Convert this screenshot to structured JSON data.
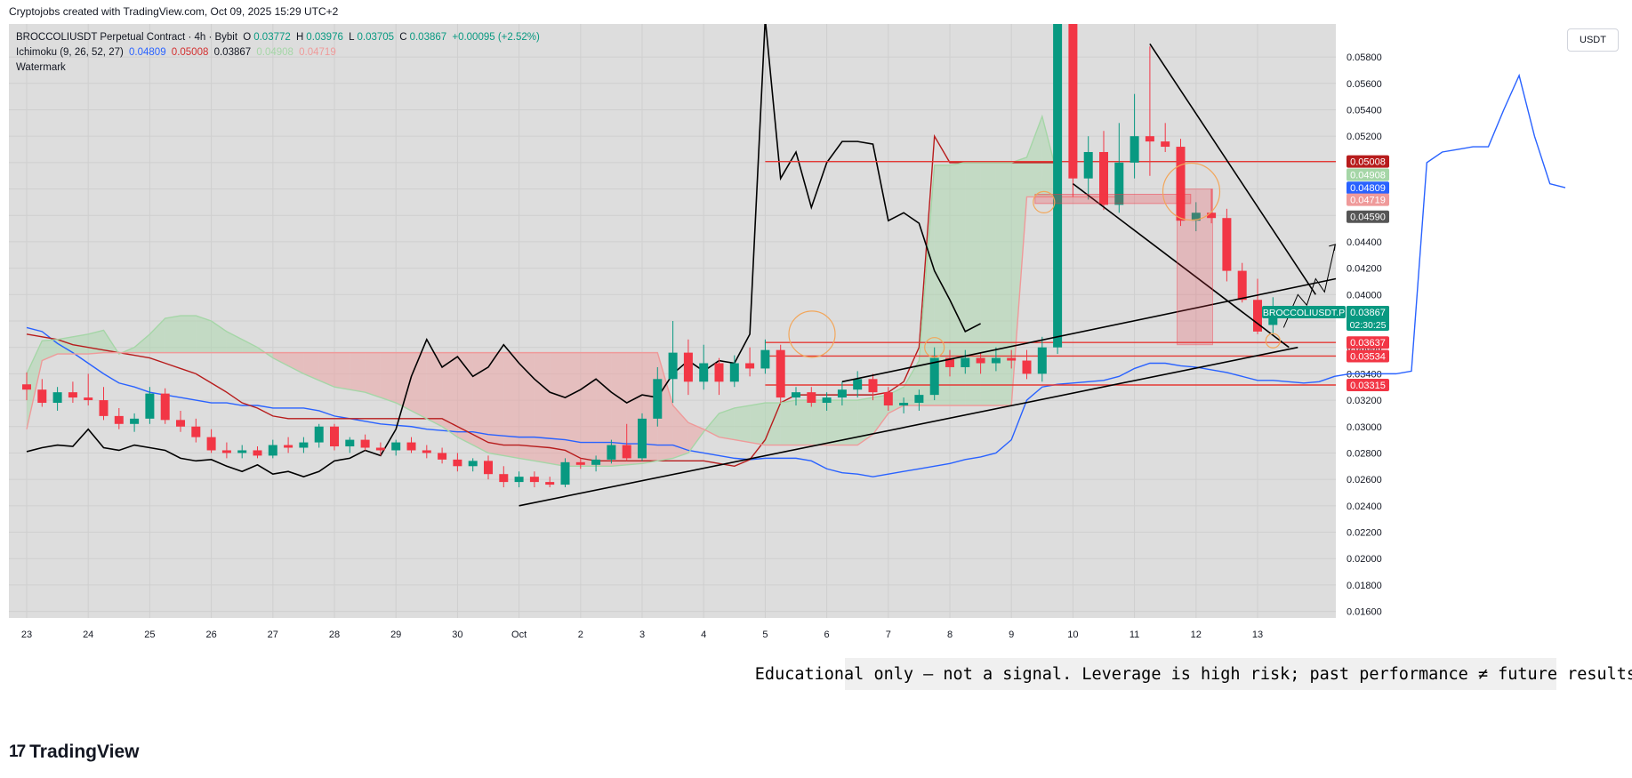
{
  "header": {
    "attribution": "Cryptojobs created with TradingView.com, Oct 09, 2025 15:29 UTC+2"
  },
  "legend": {
    "symbol": "BROCCOLIUSDT Perpetual Contract · 4h · Bybit",
    "ohlc": {
      "o_label": "O",
      "o": "0.03772",
      "h_label": "H",
      "h": "0.03976",
      "l_label": "L",
      "l": "0.03705",
      "c_label": "C",
      "c": "0.03867",
      "change": "+0.00095 (+2.52%)"
    },
    "ichimoku": {
      "label": "Ichimoku (9, 26, 52, 27)",
      "values": [
        "0.04809",
        "0.05008",
        "0.03867",
        "0.04908",
        "0.04719"
      ]
    },
    "watermark": "Watermark"
  },
  "currency_button": "USDT",
  "disclaimer": "Educational only — not a signal. Leverage is high risk; past performance ≠ future results.",
  "footer": {
    "brand": "TradingView"
  },
  "colors": {
    "up": "#089981",
    "down": "#f23645",
    "tenkan": "#2962ff",
    "kijun": "#b71c1c",
    "chikou": "#000000",
    "span_a": "#a5d6a7",
    "span_b": "#ef9a9a",
    "background": "#dddddd"
  },
  "chart_data": {
    "type": "candlestick",
    "title": "BROCCOLIUSDT Perpetual Contract · 4h · Bybit",
    "ylim": [
      0.0155,
      0.0605
    ],
    "y_ticks": [
      "0.05800",
      "0.05600",
      "0.05400",
      "0.05200",
      "0.05000",
      "0.04800",
      "0.04600",
      "0.04400",
      "0.04200",
      "0.04000",
      "0.03800",
      "0.03600",
      "0.03400",
      "0.03200",
      "0.03000",
      "0.02800",
      "0.02600",
      "0.02400",
      "0.02200",
      "0.02000",
      "0.01800",
      "0.01600"
    ],
    "x_ticks": [
      "23",
      "24",
      "25",
      "26",
      "27",
      "28",
      "29",
      "30",
      "Oct",
      "2",
      "3",
      "4",
      "5",
      "6",
      "7",
      "8",
      "9",
      "10",
      "11",
      "12",
      "13"
    ],
    "grid": true,
    "candles": [
      {
        "t": "23",
        "o": 0.0332,
        "h": 0.0341,
        "l": 0.032,
        "c": 0.0328
      },
      {
        "t": "23",
        "o": 0.0328,
        "h": 0.0336,
        "l": 0.0315,
        "c": 0.0318
      },
      {
        "t": "23",
        "o": 0.0318,
        "h": 0.033,
        "l": 0.0312,
        "c": 0.0326
      },
      {
        "t": "23",
        "o": 0.0326,
        "h": 0.0334,
        "l": 0.0318,
        "c": 0.0322
      },
      {
        "t": "24",
        "o": 0.0322,
        "h": 0.034,
        "l": 0.0316,
        "c": 0.032
      },
      {
        "t": "24",
        "o": 0.032,
        "h": 0.033,
        "l": 0.0305,
        "c": 0.0308
      },
      {
        "t": "24",
        "o": 0.0308,
        "h": 0.0314,
        "l": 0.0298,
        "c": 0.0302
      },
      {
        "t": "24",
        "o": 0.0302,
        "h": 0.031,
        "l": 0.0296,
        "c": 0.0306
      },
      {
        "t": "25",
        "o": 0.0306,
        "h": 0.033,
        "l": 0.0302,
        "c": 0.0325
      },
      {
        "t": "25",
        "o": 0.0325,
        "h": 0.0329,
        "l": 0.0302,
        "c": 0.0305
      },
      {
        "t": "25",
        "o": 0.0305,
        "h": 0.0312,
        "l": 0.0296,
        "c": 0.03
      },
      {
        "t": "25",
        "o": 0.03,
        "h": 0.0306,
        "l": 0.0288,
        "c": 0.0292
      },
      {
        "t": "26",
        "o": 0.0292,
        "h": 0.0298,
        "l": 0.028,
        "c": 0.0282
      },
      {
        "t": "26",
        "o": 0.0282,
        "h": 0.0288,
        "l": 0.0276,
        "c": 0.028
      },
      {
        "t": "26",
        "o": 0.028,
        "h": 0.0286,
        "l": 0.0276,
        "c": 0.0282
      },
      {
        "t": "26",
        "o": 0.0282,
        "h": 0.0285,
        "l": 0.0276,
        "c": 0.0278
      },
      {
        "t": "27",
        "o": 0.0278,
        "h": 0.029,
        "l": 0.0276,
        "c": 0.0286
      },
      {
        "t": "27",
        "o": 0.0286,
        "h": 0.0292,
        "l": 0.028,
        "c": 0.0284
      },
      {
        "t": "27",
        "o": 0.0284,
        "h": 0.0292,
        "l": 0.028,
        "c": 0.0288
      },
      {
        "t": "27",
        "o": 0.0288,
        "h": 0.0302,
        "l": 0.0284,
        "c": 0.03
      },
      {
        "t": "28",
        "o": 0.03,
        "h": 0.0302,
        "l": 0.0282,
        "c": 0.0285
      },
      {
        "t": "28",
        "o": 0.0285,
        "h": 0.0292,
        "l": 0.028,
        "c": 0.029
      },
      {
        "t": "28",
        "o": 0.029,
        "h": 0.0294,
        "l": 0.0282,
        "c": 0.0284
      },
      {
        "t": "28",
        "o": 0.0284,
        "h": 0.0288,
        "l": 0.0278,
        "c": 0.0282
      },
      {
        "t": "29",
        "o": 0.0282,
        "h": 0.029,
        "l": 0.0278,
        "c": 0.0288
      },
      {
        "t": "29",
        "o": 0.0288,
        "h": 0.0292,
        "l": 0.028,
        "c": 0.0282
      },
      {
        "t": "29",
        "o": 0.0282,
        "h": 0.0286,
        "l": 0.0276,
        "c": 0.028
      },
      {
        "t": "29",
        "o": 0.028,
        "h": 0.0284,
        "l": 0.0272,
        "c": 0.0275
      },
      {
        "t": "30",
        "o": 0.0275,
        "h": 0.028,
        "l": 0.0266,
        "c": 0.027
      },
      {
        "t": "30",
        "o": 0.027,
        "h": 0.0276,
        "l": 0.0266,
        "c": 0.0274
      },
      {
        "t": "30",
        "o": 0.0274,
        "h": 0.0278,
        "l": 0.026,
        "c": 0.0264
      },
      {
        "t": "30",
        "o": 0.0264,
        "h": 0.027,
        "l": 0.0254,
        "c": 0.0258
      },
      {
        "t": "Oct",
        "o": 0.0258,
        "h": 0.0266,
        "l": 0.0254,
        "c": 0.0262
      },
      {
        "t": "Oct",
        "o": 0.0262,
        "h": 0.0266,
        "l": 0.0254,
        "c": 0.0258
      },
      {
        "t": "Oct",
        "o": 0.0258,
        "h": 0.0262,
        "l": 0.0254,
        "c": 0.0256
      },
      {
        "t": "Oct",
        "o": 0.0256,
        "h": 0.0276,
        "l": 0.0254,
        "c": 0.0273
      },
      {
        "t": "2",
        "o": 0.0273,
        "h": 0.0276,
        "l": 0.0268,
        "c": 0.0271
      },
      {
        "t": "2",
        "o": 0.0271,
        "h": 0.0278,
        "l": 0.0266,
        "c": 0.0275
      },
      {
        "t": "2",
        "o": 0.0275,
        "h": 0.029,
        "l": 0.0272,
        "c": 0.0286
      },
      {
        "t": "2",
        "o": 0.0286,
        "h": 0.0302,
        "l": 0.0274,
        "c": 0.0276
      },
      {
        "t": "3",
        "o": 0.0276,
        "h": 0.031,
        "l": 0.0274,
        "c": 0.0306
      },
      {
        "t": "3",
        "o": 0.0306,
        "h": 0.0345,
        "l": 0.03,
        "c": 0.0336
      },
      {
        "t": "3",
        "o": 0.0336,
        "h": 0.038,
        "l": 0.0318,
        "c": 0.0356
      },
      {
        "t": "3",
        "o": 0.0356,
        "h": 0.0366,
        "l": 0.0324,
        "c": 0.0334
      },
      {
        "t": "4",
        "o": 0.0334,
        "h": 0.0362,
        "l": 0.0328,
        "c": 0.0348
      },
      {
        "t": "4",
        "o": 0.0348,
        "h": 0.0352,
        "l": 0.0324,
        "c": 0.0334
      },
      {
        "t": "4",
        "o": 0.0334,
        "h": 0.0354,
        "l": 0.033,
        "c": 0.0348
      },
      {
        "t": "4",
        "o": 0.0348,
        "h": 0.036,
        "l": 0.0338,
        "c": 0.0344
      },
      {
        "t": "5",
        "o": 0.0344,
        "h": 0.0366,
        "l": 0.034,
        "c": 0.0358
      },
      {
        "t": "5",
        "o": 0.0358,
        "h": 0.0362,
        "l": 0.0318,
        "c": 0.0322
      },
      {
        "t": "5",
        "o": 0.0322,
        "h": 0.033,
        "l": 0.0316,
        "c": 0.0326
      },
      {
        "t": "5",
        "o": 0.0326,
        "h": 0.033,
        "l": 0.0315,
        "c": 0.0318
      },
      {
        "t": "6",
        "o": 0.0318,
        "h": 0.0326,
        "l": 0.0312,
        "c": 0.0322
      },
      {
        "t": "6",
        "o": 0.0322,
        "h": 0.0334,
        "l": 0.0316,
        "c": 0.0328
      },
      {
        "t": "6",
        "o": 0.0328,
        "h": 0.0342,
        "l": 0.0322,
        "c": 0.0336
      },
      {
        "t": "6",
        "o": 0.0336,
        "h": 0.034,
        "l": 0.032,
        "c": 0.0326
      },
      {
        "t": "7",
        "o": 0.0326,
        "h": 0.033,
        "l": 0.0312,
        "c": 0.0316
      },
      {
        "t": "7",
        "o": 0.0316,
        "h": 0.0322,
        "l": 0.031,
        "c": 0.0318
      },
      {
        "t": "7",
        "o": 0.0318,
        "h": 0.0328,
        "l": 0.0312,
        "c": 0.0324
      },
      {
        "t": "7",
        "o": 0.0324,
        "h": 0.036,
        "l": 0.032,
        "c": 0.0352
      },
      {
        "t": "8",
        "o": 0.0352,
        "h": 0.0358,
        "l": 0.0338,
        "c": 0.0345
      },
      {
        "t": "8",
        "o": 0.0345,
        "h": 0.0358,
        "l": 0.034,
        "c": 0.0352
      },
      {
        "t": "8",
        "o": 0.0352,
        "h": 0.0356,
        "l": 0.034,
        "c": 0.0348
      },
      {
        "t": "8",
        "o": 0.0348,
        "h": 0.036,
        "l": 0.0342,
        "c": 0.0352
      },
      {
        "t": "9",
        "o": 0.0352,
        "h": 0.0358,
        "l": 0.0344,
        "c": 0.035
      },
      {
        "t": "9",
        "o": 0.035,
        "h": 0.0358,
        "l": 0.0336,
        "c": 0.034
      },
      {
        "t": "9",
        "o": 0.034,
        "h": 0.0368,
        "l": 0.0334,
        "c": 0.036
      },
      {
        "t": "9",
        "o": 0.036,
        "h": 0.0606,
        "l": 0.0355,
        "c": 0.0605
      },
      {
        "t": "10",
        "o": 0.0605,
        "h": 0.0606,
        "l": 0.0474,
        "c": 0.0488
      },
      {
        "t": "10",
        "o": 0.0488,
        "h": 0.052,
        "l": 0.0472,
        "c": 0.0508
      },
      {
        "t": "10",
        "o": 0.0508,
        "h": 0.0524,
        "l": 0.0464,
        "c": 0.0468
      },
      {
        "t": "10",
        "o": 0.0468,
        "h": 0.053,
        "l": 0.0462,
        "c": 0.05
      },
      {
        "t": "11",
        "o": 0.05,
        "h": 0.0552,
        "l": 0.0488,
        "c": 0.052
      },
      {
        "t": "11",
        "o": 0.052,
        "h": 0.0588,
        "l": 0.049,
        "c": 0.0516
      },
      {
        "t": "11",
        "o": 0.0516,
        "h": 0.053,
        "l": 0.0508,
        "c": 0.0512
      },
      {
        "t": "11",
        "o": 0.0512,
        "h": 0.0518,
        "l": 0.0452,
        "c": 0.0456
      },
      {
        "t": "12",
        "o": 0.0456,
        "h": 0.047,
        "l": 0.0448,
        "c": 0.0462
      },
      {
        "t": "12",
        "o": 0.0462,
        "h": 0.048,
        "l": 0.0454,
        "c": 0.0458
      },
      {
        "t": "12",
        "o": 0.0458,
        "h": 0.0465,
        "l": 0.041,
        "c": 0.0418
      },
      {
        "t": "12",
        "o": 0.0418,
        "h": 0.0424,
        "l": 0.0394,
        "c": 0.0396
      },
      {
        "t": "13",
        "o": 0.0396,
        "h": 0.0412,
        "l": 0.037,
        "c": 0.0372
      },
      {
        "t": "13",
        "o": 0.0377,
        "h": 0.0398,
        "l": 0.037,
        "c": 0.0387
      }
    ],
    "series": [
      {
        "key": "tenkan",
        "values": [
          0.0375,
          0.0372,
          0.0363,
          0.0356,
          0.0348,
          0.034,
          0.0333,
          0.033,
          0.0326,
          0.0324,
          0.0322,
          0.032,
          0.0318,
          0.0318,
          0.0316,
          0.0316,
          0.0314,
          0.0314,
          0.0314,
          0.0312,
          0.0308,
          0.0306,
          0.0304,
          0.0302,
          0.0301,
          0.03,
          0.0298,
          0.0297,
          0.0296,
          0.0296,
          0.0294,
          0.0293,
          0.0292,
          0.0292,
          0.0291,
          0.029,
          0.0288,
          0.0288,
          0.0288,
          0.0287,
          0.0287,
          0.0286,
          0.0286,
          0.0282,
          0.028,
          0.0278,
          0.0276,
          0.0275,
          0.0276,
          0.0276,
          0.0276,
          0.0274,
          0.0268,
          0.0265,
          0.0264,
          0.0262,
          0.0264,
          0.0266,
          0.0268,
          0.027,
          0.0272,
          0.0275,
          0.0277,
          0.028,
          0.029,
          0.032,
          0.033,
          0.0332,
          0.0333,
          0.0334,
          0.0335,
          0.0338,
          0.0344,
          0.0348,
          0.0348,
          0.0346,
          0.0345,
          0.0343,
          0.0341,
          0.0338,
          0.0335,
          0.0335,
          0.0334,
          0.0333,
          0.0334,
          0.0338,
          0.034,
          0.034,
          0.034,
          0.034,
          0.0342,
          0.05,
          0.0508,
          0.051,
          0.0512,
          0.0512,
          0.054,
          0.0566,
          0.052,
          0.0484,
          0.0481
        ]
      },
      {
        "key": "kijun",
        "values": [
          0.037,
          0.0368,
          0.0366,
          0.0362,
          0.036,
          0.0358,
          0.0356,
          0.0354,
          0.0352,
          0.0348,
          0.0344,
          0.034,
          0.0333,
          0.0326,
          0.0318,
          0.0314,
          0.0308,
          0.0306,
          0.0306,
          0.0306,
          0.0306,
          0.0306,
          0.0306,
          0.0306,
          0.0306,
          0.0306,
          0.0306,
          0.0306,
          0.03,
          0.0294,
          0.0288,
          0.0286,
          0.0286,
          0.0285,
          0.0284,
          0.0282,
          0.0276,
          0.0274,
          0.0274,
          0.0274,
          0.0274,
          0.0274,
          0.0274,
          0.0274,
          0.0274,
          0.0272,
          0.027,
          0.0275,
          0.029,
          0.0318,
          0.0324,
          0.0324,
          0.0324,
          0.0324,
          0.0324,
          0.0324,
          0.0326,
          0.0334,
          0.036,
          0.052,
          0.05,
          0.05,
          0.05,
          0.05,
          0.05,
          0.05,
          0.05,
          0.05
        ]
      },
      {
        "key": "span_a",
        "values": [
          0.034,
          0.0365,
          0.0366,
          0.0368,
          0.037,
          0.0373,
          0.0355,
          0.036,
          0.037,
          0.0382,
          0.0384,
          0.0384,
          0.038,
          0.0372,
          0.0366,
          0.036,
          0.0352,
          0.0346,
          0.034,
          0.0335,
          0.033,
          0.0328,
          0.0326,
          0.0322,
          0.0318,
          0.0312,
          0.0306,
          0.03,
          0.0292,
          0.0286,
          0.028,
          0.0278,
          0.0276,
          0.0274,
          0.0272,
          0.027,
          0.027,
          0.027,
          0.027,
          0.0271,
          0.0272,
          0.0274,
          0.0276,
          0.028,
          0.0296,
          0.031,
          0.0314,
          0.0316,
          0.0318,
          0.0318,
          0.032,
          0.032,
          0.032,
          0.032,
          0.032,
          0.0322,
          0.0324,
          0.033,
          0.035,
          0.0498,
          0.0498,
          0.05,
          0.05,
          0.05,
          0.05,
          0.0504,
          0.0535,
          0.049
        ]
      },
      {
        "key": "span_b",
        "values": [
          0.0298,
          0.035,
          0.0355,
          0.0355,
          0.0355,
          0.0356,
          0.0356,
          0.0356,
          0.0356,
          0.0356,
          0.0356,
          0.0356,
          0.0356,
          0.0356,
          0.0356,
          0.0356,
          0.0356,
          0.0356,
          0.0356,
          0.0356,
          0.0356,
          0.0356,
          0.0356,
          0.0356,
          0.0356,
          0.0356,
          0.0356,
          0.0356,
          0.0356,
          0.0356,
          0.0356,
          0.0356,
          0.0356,
          0.0356,
          0.0356,
          0.0356,
          0.0356,
          0.0356,
          0.0356,
          0.0356,
          0.0356,
          0.0356,
          0.0316,
          0.0303,
          0.0298,
          0.0292,
          0.029,
          0.0288,
          0.0286,
          0.0286,
          0.0286,
          0.0286,
          0.0286,
          0.0286,
          0.0286,
          0.0294,
          0.031,
          0.0316,
          0.0316,
          0.0316,
          0.0316,
          0.0316,
          0.0316,
          0.0316,
          0.0316,
          0.0474,
          0.0474,
          0.0474,
          0.0474,
          0.0474,
          0.0474,
          0.0474
        ]
      },
      {
        "key": "chikou",
        "values": [
          0.0281,
          0.0284,
          0.0286,
          0.0285,
          0.0298,
          0.0284,
          0.0282,
          0.0286,
          0.0284,
          0.0282,
          0.0276,
          0.0274,
          0.0275,
          0.027,
          0.0266,
          0.0271,
          0.0264,
          0.0266,
          0.0262,
          0.0266,
          0.0274,
          0.0276,
          0.0282,
          0.0278,
          0.0298,
          0.0338,
          0.0366,
          0.0345,
          0.0353,
          0.0338,
          0.0345,
          0.0362,
          0.0348,
          0.0336,
          0.0326,
          0.0322,
          0.0328,
          0.0336,
          0.0326,
          0.0318,
          0.0324,
          0.0322,
          0.034,
          0.035,
          0.0342,
          0.035,
          0.0348,
          0.037,
          0.0609,
          0.0488,
          0.0508,
          0.0466,
          0.05,
          0.0516,
          0.0516,
          0.0514,
          0.0456,
          0.0462,
          0.0454,
          0.0418,
          0.0396,
          0.0372,
          0.0378
        ]
      }
    ],
    "price_labels": [
      {
        "text": "0.05008",
        "value": 0.05008,
        "color": "#b71c1c"
      },
      {
        "text": "0.04908",
        "value": 0.04908,
        "color": "#a5d6a7"
      },
      {
        "text": "0.04809",
        "value": 0.04809,
        "color": "#2962ff"
      },
      {
        "text": "0.04719",
        "value": 0.04719,
        "color": "#ef9a9a"
      },
      {
        "text": "0.04590",
        "value": 0.0459,
        "color": "#555555"
      },
      {
        "text": "0.03867",
        "value": 0.03867,
        "color": "#000000"
      },
      {
        "text": "0.03867",
        "value": 0.03867,
        "color": "#089981",
        "sub": "02:30:25",
        "tag": "BROCCOLIUSDT.P"
      },
      {
        "text": "0.03637",
        "value": 0.03637,
        "color": "#f23645"
      },
      {
        "text": "0.03534",
        "value": 0.03534,
        "color": "#f23645"
      },
      {
        "text": "0.03315",
        "value": 0.03315,
        "color": "#f23645"
      }
    ],
    "horizontal_levels": [
      0.05008,
      0.03637,
      0.03534,
      0.03315
    ]
  }
}
